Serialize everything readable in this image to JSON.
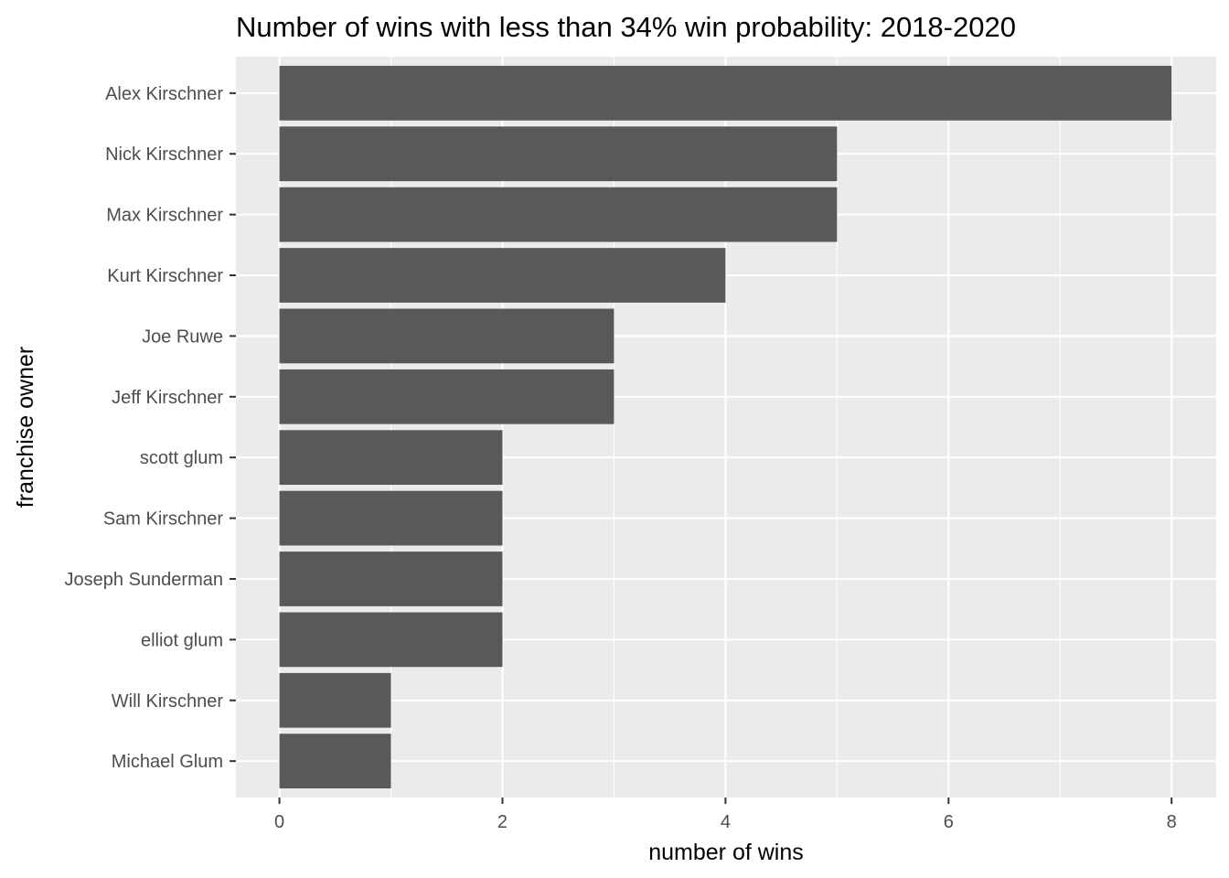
{
  "chart_data": {
    "type": "bar",
    "orientation": "horizontal",
    "title": "Number of wins with less than 34% win probability: 2018-2020",
    "xlabel": "number of wins",
    "ylabel": "franchise owner",
    "categories": [
      "Alex Kirschner",
      "Nick Kirschner",
      "Max Kirschner",
      "Kurt Kirschner",
      "Joe Ruwe",
      "Jeff Kirschner",
      "scott glum",
      "Sam Kirschner",
      "Joseph Sunderman",
      "elliot glum",
      "Will Kirschner",
      "Michael Glum"
    ],
    "values": [
      8,
      5,
      5,
      4,
      3,
      3,
      2,
      2,
      2,
      2,
      1,
      1
    ],
    "xlim": [
      -0.39,
      8.4
    ],
    "xticks": [
      0,
      2,
      4,
      6,
      8
    ],
    "grid": true,
    "colors": {
      "bar": "#595959",
      "panel": "#ebebeb",
      "grid": "#ffffff"
    }
  }
}
